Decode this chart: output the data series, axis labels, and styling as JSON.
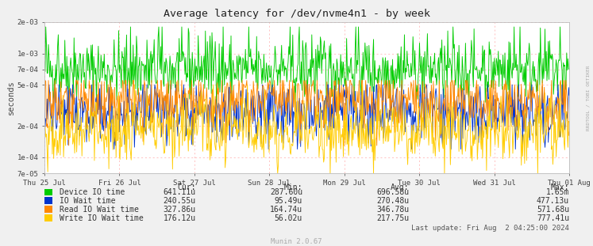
{
  "title": "Average latency for /dev/nvme4n1 - by week",
  "ylabel": "seconds",
  "right_label": "RRDTOOL / TOBI OETIKER",
  "x_tick_labels": [
    "Thu 25 Jul",
    "Fri 26 Jul",
    "Sat 27 Jul",
    "Sun 28 Jul",
    "Mon 29 Jul",
    "Tue 30 Jul",
    "Wed 31 Jul",
    "Thu 01 Aug"
  ],
  "ymin": 7e-05,
  "ymax": 0.002,
  "bg_color": "#f0f0f0",
  "plot_bg_color": "#ffffff",
  "grid_color": "#ffaaaa",
  "colors": {
    "device_io": "#00cc00",
    "io_wait": "#0033cc",
    "read_io_wait": "#ff8800",
    "write_io_wait": "#ffcc00"
  },
  "legend": [
    {
      "label": "Device IO time",
      "color": "#00cc00"
    },
    {
      "label": "IO Wait time",
      "color": "#0033cc"
    },
    {
      "label": "Read IO Wait time",
      "color": "#ff8800"
    },
    {
      "label": "Write IO Wait time",
      "color": "#ffcc00"
    }
  ],
  "stats_headers": [
    "Cur:",
    "Min:",
    "Avg:",
    "Max:"
  ],
  "stats": [
    [
      "641.11u",
      "287.60u",
      "696.58u",
      "1.65m"
    ],
    [
      "240.55u",
      "95.49u",
      "270.48u",
      "477.13u"
    ],
    [
      "327.86u",
      "164.74u",
      "346.78u",
      "571.68u"
    ],
    [
      "176.12u",
      "56.02u",
      "217.75u",
      "777.41u"
    ]
  ],
  "last_update": "Last update: Fri Aug  2 04:25:00 2024",
  "munin_version": "Munin 2.0.67",
  "num_points": 800,
  "seed": 42
}
